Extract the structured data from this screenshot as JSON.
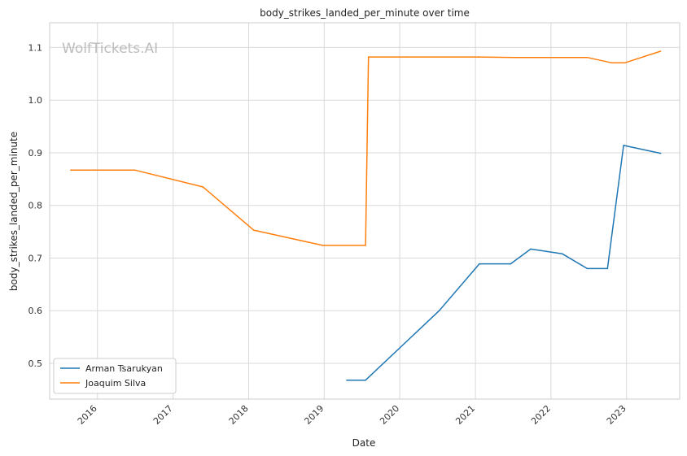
{
  "chart_data": {
    "type": "line",
    "title": "body_strikes_landed_per_minute over time",
    "xlabel": "Date",
    "ylabel": "body_strikes_landed_per_minute",
    "watermark": "WolfTickets.AI",
    "x_axis_type": "date",
    "xlim": [
      "2015-05-15",
      "2023-09-15"
    ],
    "ylim": [
      0.432,
      1.147
    ],
    "x_ticks": [
      "2016",
      "2017",
      "2018",
      "2019",
      "2020",
      "2021",
      "2022",
      "2023"
    ],
    "y_ticks": [
      "0.5",
      "0.6",
      "0.7",
      "0.8",
      "0.9",
      "1.0",
      "1.1"
    ],
    "grid": true,
    "legend_position": "lower-left",
    "series": [
      {
        "name": "Arman Tsarukyan",
        "color": "#1f77b4",
        "points": [
          {
            "x": "2019-04-20",
            "y": 0.468
          },
          {
            "x": "2019-07-20",
            "y": 0.468
          },
          {
            "x": "2020-07-10",
            "y": 0.6
          },
          {
            "x": "2021-01-20",
            "y": 0.689
          },
          {
            "x": "2021-06-20",
            "y": 0.689
          },
          {
            "x": "2021-09-25",
            "y": 0.717
          },
          {
            "x": "2022-02-25",
            "y": 0.708
          },
          {
            "x": "2022-06-25",
            "y": 0.68
          },
          {
            "x": "2022-10-01",
            "y": 0.68
          },
          {
            "x": "2022-12-18",
            "y": 0.914
          },
          {
            "x": "2023-06-15",
            "y": 0.899
          }
        ]
      },
      {
        "name": "Joaquim Silva",
        "color": "#ff7f0e",
        "points": [
          {
            "x": "2015-08-25",
            "y": 0.867
          },
          {
            "x": "2016-07-01",
            "y": 0.867
          },
          {
            "x": "2017-05-25",
            "y": 0.835
          },
          {
            "x": "2018-01-25",
            "y": 0.753
          },
          {
            "x": "2018-12-25",
            "y": 0.724
          },
          {
            "x": "2019-07-20",
            "y": 0.724
          },
          {
            "x": "2019-08-03",
            "y": 1.082
          },
          {
            "x": "2020-02-01",
            "y": 1.082
          },
          {
            "x": "2021-01-15",
            "y": 1.082
          },
          {
            "x": "2021-07-15",
            "y": 1.081
          },
          {
            "x": "2022-06-25",
            "y": 1.081
          },
          {
            "x": "2022-10-20",
            "y": 1.071
          },
          {
            "x": "2022-12-25",
            "y": 1.071
          },
          {
            "x": "2023-06-15",
            "y": 1.093
          }
        ]
      }
    ]
  }
}
